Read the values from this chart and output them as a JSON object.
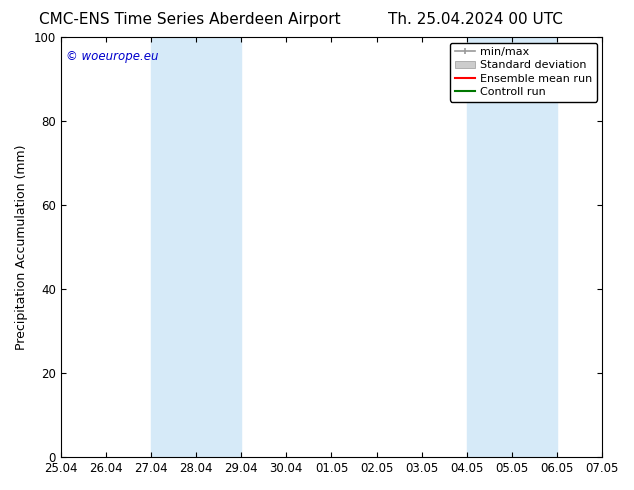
{
  "title_left": "CMC-ENS Time Series Aberdeen Airport",
  "title_right": "Th. 25.04.2024 00 UTC",
  "ylabel": "Precipitation Accumulation (mm)",
  "ylim": [
    0,
    100
  ],
  "xtick_labels": [
    "25.04",
    "26.04",
    "27.04",
    "28.04",
    "29.04",
    "30.04",
    "01.05",
    "02.05",
    "03.05",
    "04.05",
    "05.05",
    "06.05",
    "07.05"
  ],
  "xtick_positions": [
    0,
    1,
    2,
    3,
    4,
    5,
    6,
    7,
    8,
    9,
    10,
    11,
    12
  ],
  "ytick_positions": [
    0,
    20,
    40,
    60,
    80,
    100
  ],
  "ytick_labels": [
    "0",
    "20",
    "40",
    "60",
    "80",
    "100"
  ],
  "shaded_regions": [
    {
      "x_start": 2,
      "x_end": 4,
      "color": "#d6eaf8",
      "alpha": 1.0
    },
    {
      "x_start": 9,
      "x_end": 11,
      "color": "#d6eaf8",
      "alpha": 1.0
    }
  ],
  "watermark_text": "© woeurope.eu",
  "watermark_color": "#0000cc",
  "background_color": "#ffffff",
  "legend_labels": [
    "min/max",
    "Standard deviation",
    "Ensemble mean run",
    "Controll run"
  ],
  "minmax_line_color": "#999999",
  "stddev_fill_color": "#cccccc",
  "ensemble_mean_color": "#ff0000",
  "control_run_color": "#007700",
  "title_fontsize": 11,
  "axis_label_fontsize": 9,
  "tick_fontsize": 8.5
}
